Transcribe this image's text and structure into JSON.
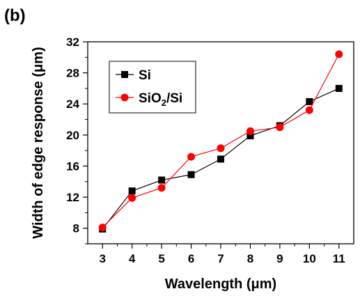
{
  "panel_label": "(b)",
  "chart_data": {
    "type": "line",
    "xlabel": "Wavelength (μm)",
    "ylabel": "Width of edge response (μm)",
    "x": [
      3,
      4,
      5,
      6,
      7,
      8,
      9,
      10,
      11
    ],
    "xlim": [
      2.5,
      11.5
    ],
    "ylim": [
      6,
      32
    ],
    "xticks": [
      3,
      4,
      5,
      6,
      7,
      8,
      9,
      10,
      11
    ],
    "yticks": [
      8,
      12,
      16,
      20,
      24,
      28,
      32
    ],
    "legend_position": "top-left",
    "grid": false,
    "series": [
      {
        "name": "Si",
        "marker": "square",
        "color": "#000000",
        "values": [
          7.9,
          12.8,
          14.2,
          14.9,
          16.9,
          19.9,
          21.2,
          24.3,
          26.0
        ]
      },
      {
        "name": "SiO2/Si",
        "name_base": "SiO",
        "name_sub": "2",
        "name_rest": "/Si",
        "marker": "circle",
        "color": "#ff0000",
        "values": [
          8.1,
          11.9,
          13.2,
          17.2,
          18.3,
          20.5,
          21.0,
          23.2,
          30.4
        ]
      }
    ]
  }
}
